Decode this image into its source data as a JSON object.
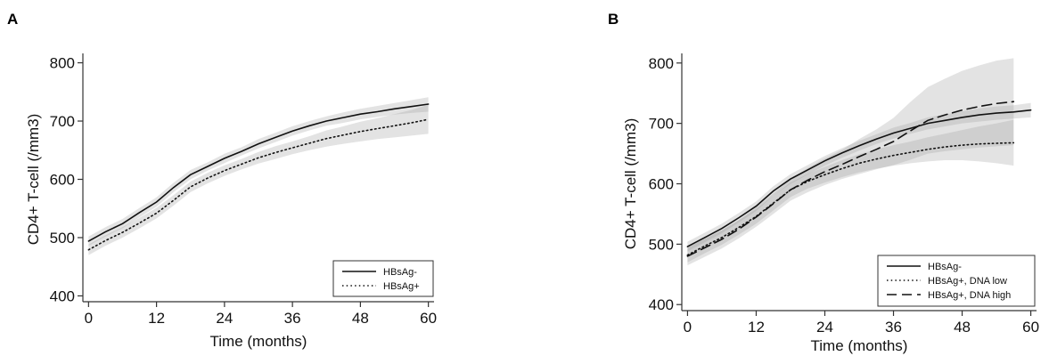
{
  "chart_data": [
    {
      "panel": "A",
      "type": "line",
      "xlabel": "Time (months)",
      "ylabel": "CD4+ T-cell (/mm3)",
      "xticks": [
        0,
        12,
        24,
        36,
        48,
        60
      ],
      "yticks": [
        400,
        500,
        600,
        700,
        800
      ],
      "xlim": [
        -1,
        61
      ],
      "ylim": [
        390,
        810
      ],
      "legend_position": "bottom-right",
      "series": [
        {
          "name": "HBsAg-",
          "style": "solid",
          "x": [
            0,
            3,
            6,
            9,
            12,
            15,
            18,
            21,
            24,
            27,
            30,
            33,
            36,
            39,
            42,
            45,
            48,
            51,
            54,
            57,
            60
          ],
          "y": [
            494,
            510,
            524,
            543,
            561,
            586,
            608,
            622,
            636,
            648,
            661,
            672,
            683,
            692,
            700,
            706,
            712,
            716,
            721,
            725,
            729
          ],
          "ci_low": [
            486,
            502,
            516,
            535,
            553,
            578,
            600,
            615,
            628,
            641,
            653,
            664,
            675,
            684,
            692,
            697,
            703,
            707,
            711,
            714,
            716
          ],
          "ci_high": [
            502,
            518,
            532,
            551,
            569,
            594,
            616,
            629,
            644,
            655,
            669,
            680,
            691,
            700,
            708,
            715,
            721,
            726,
            731,
            736,
            741
          ]
        },
        {
          "name": "HBsAg+",
          "style": "dotted",
          "x": [
            0,
            3,
            6,
            9,
            12,
            15,
            18,
            21,
            24,
            27,
            30,
            33,
            36,
            39,
            42,
            45,
            48,
            51,
            54,
            57,
            60
          ],
          "y": [
            479,
            495,
            509,
            525,
            542,
            564,
            587,
            602,
            615,
            626,
            637,
            646,
            654,
            662,
            670,
            676,
            682,
            687,
            692,
            697,
            703
          ],
          "ci_low": [
            470,
            486,
            500,
            516,
            533,
            555,
            578,
            593,
            606,
            617,
            627,
            635,
            643,
            650,
            656,
            661,
            665,
            669,
            672,
            675,
            678
          ],
          "ci_high": [
            488,
            504,
            518,
            534,
            551,
            573,
            596,
            611,
            624,
            635,
            647,
            657,
            665,
            674,
            684,
            691,
            699,
            705,
            712,
            719,
            728
          ]
        }
      ]
    },
    {
      "panel": "B",
      "type": "line",
      "xlabel": "Time (months)",
      "ylabel": "CD4+ T-cell (/mm3)",
      "xticks": [
        0,
        12,
        24,
        36,
        48,
        60
      ],
      "yticks": [
        400,
        500,
        600,
        700,
        800
      ],
      "xlim": [
        -1,
        61
      ],
      "ylim": [
        390,
        810
      ],
      "legend_position": "bottom-right",
      "series": [
        {
          "name": "HBsAg-",
          "style": "solid",
          "x": [
            0,
            3,
            6,
            9,
            12,
            15,
            18,
            21,
            24,
            27,
            30,
            33,
            36,
            39,
            42,
            45,
            48,
            51,
            54,
            57,
            60
          ],
          "y": [
            496,
            511,
            526,
            544,
            563,
            588,
            608,
            623,
            638,
            651,
            663,
            674,
            684,
            692,
            700,
            705,
            710,
            714,
            717,
            719,
            722
          ],
          "ci_low": [
            488,
            503,
            518,
            536,
            555,
            580,
            600,
            615,
            630,
            643,
            655,
            666,
            675,
            683,
            690,
            695,
            700,
            703,
            706,
            708,
            710
          ],
          "ci_high": [
            504,
            519,
            534,
            552,
            571,
            596,
            616,
            631,
            646,
            659,
            671,
            682,
            693,
            701,
            710,
            715,
            720,
            725,
            728,
            730,
            734
          ]
        },
        {
          "name": "HBsAg+, DNA low",
          "style": "dotted",
          "x": [
            0,
            3,
            6,
            9,
            12,
            15,
            18,
            21,
            24,
            27,
            30,
            33,
            36,
            39,
            42,
            45,
            48,
            51,
            54,
            57
          ],
          "y": [
            482,
            497,
            511,
            528,
            546,
            568,
            590,
            604,
            615,
            625,
            634,
            641,
            647,
            652,
            657,
            661,
            664,
            666,
            667,
            668
          ],
          "ci_low": [
            470,
            485,
            499,
            516,
            534,
            556,
            578,
            592,
            602,
            611,
            619,
            625,
            630,
            634,
            637,
            639,
            639,
            637,
            634,
            630
          ],
          "ci_high": [
            494,
            509,
            523,
            540,
            558,
            580,
            602,
            616,
            628,
            639,
            649,
            657,
            664,
            670,
            677,
            683,
            689,
            695,
            700,
            706
          ]
        },
        {
          "name": "HBsAg+, DNA high",
          "style": "dashed",
          "x": [
            0,
            3,
            6,
            9,
            12,
            15,
            18,
            21,
            24,
            27,
            30,
            33,
            36,
            39,
            42,
            45,
            48,
            51,
            54,
            57
          ],
          "y": [
            480,
            494,
            508,
            525,
            545,
            567,
            590,
            606,
            620,
            632,
            645,
            657,
            670,
            688,
            705,
            714,
            722,
            728,
            733,
            736
          ],
          "ci_low": [
            465,
            479,
            493,
            510,
            529,
            550,
            572,
            586,
            598,
            608,
            616,
            624,
            631,
            640,
            650,
            654,
            657,
            660,
            662,
            664
          ],
          "ci_high": [
            495,
            509,
            523,
            540,
            561,
            584,
            608,
            626,
            642,
            656,
            674,
            690,
            709,
            736,
            760,
            774,
            787,
            796,
            804,
            808
          ]
        }
      ]
    }
  ],
  "panels": [
    {
      "letter": "A"
    },
    {
      "letter": "B"
    }
  ]
}
